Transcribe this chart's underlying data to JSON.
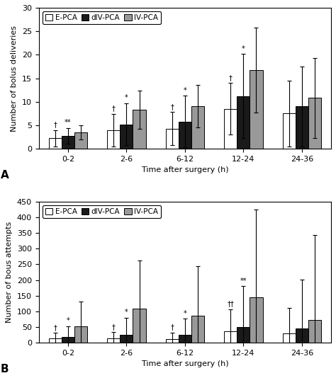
{
  "panel_A": {
    "title": "A",
    "ylabel": "Number of bolus deliveries",
    "xlabel": "Time after surgery (h)",
    "ylim": [
      0,
      30
    ],
    "yticks": [
      0,
      5,
      10,
      15,
      20,
      25,
      30
    ],
    "categories": [
      "0-2",
      "2-6",
      "6-12",
      "12-24",
      "24-36"
    ],
    "bars": {
      "E-PCA": [
        2.2,
        3.9,
        4.3,
        8.5,
        7.5
      ],
      "dIV-PCA": [
        2.7,
        5.2,
        5.8,
        11.2,
        9.0
      ],
      "IV-PCA": [
        3.5,
        8.3,
        9.0,
        16.7,
        10.8
      ]
    },
    "errors": {
      "E-PCA": [
        1.8,
        3.5,
        3.5,
        5.5,
        7.0
      ],
      "dIV-PCA": [
        1.7,
        4.5,
        5.5,
        9.0,
        8.5
      ],
      "IV-PCA": [
        1.5,
        4.0,
        4.5,
        9.0,
        8.5
      ]
    },
    "annotations": {
      "0-2": {
        "E-PCA": "†",
        "dIV-PCA": "**"
      },
      "2-6": {
        "E-PCA": "†",
        "dIV-PCA": "*"
      },
      "6-12": {
        "E-PCA": "†",
        "dIV-PCA": "*"
      },
      "12-24": {
        "E-PCA": "†",
        "dIV-PCA": "*"
      },
      "24-36": {}
    }
  },
  "panel_B": {
    "title": "B",
    "ylabel": "Number of bous attempts",
    "xlabel": "Time after surgery (h)",
    "ylim": [
      0,
      450
    ],
    "yticks": [
      0,
      50,
      100,
      150,
      200,
      250,
      300,
      350,
      400,
      450
    ],
    "categories": [
      "0-2",
      "2-6",
      "6-12",
      "12-24",
      "24-36"
    ],
    "bars": {
      "E-PCA": [
        13,
        13,
        12,
        37,
        30
      ],
      "dIV-PCA": [
        18,
        25,
        26,
        50,
        46
      ],
      "IV-PCA": [
        52,
        108,
        85,
        145,
        73
      ]
    },
    "errors": {
      "E-PCA": [
        18,
        20,
        20,
        70,
        80
      ],
      "dIV-PCA": [
        35,
        55,
        50,
        130,
        155
      ],
      "IV-PCA": [
        78,
        155,
        160,
        280,
        270
      ]
    },
    "annotations": {
      "0-2": {
        "E-PCA": "†",
        "dIV-PCA": "*"
      },
      "2-6": {
        "E-PCA": "†",
        "dIV-PCA": "*"
      },
      "6-12": {
        "E-PCA": "†",
        "dIV-PCA": "*"
      },
      "12-24": {
        "E-PCA": "††",
        "dIV-PCA": "**"
      },
      "24-36": {}
    }
  },
  "colors": {
    "E-PCA": "#ffffff",
    "dIV-PCA": "#1a1a1a",
    "IV-PCA": "#999999"
  },
  "edgecolor": "#000000",
  "bar_width": 0.22,
  "legend_labels": [
    "E-PCA",
    "dIV-PCA",
    "IV-PCA"
  ],
  "figsize": [
    4.74,
    5.34
  ],
  "dpi": 100
}
